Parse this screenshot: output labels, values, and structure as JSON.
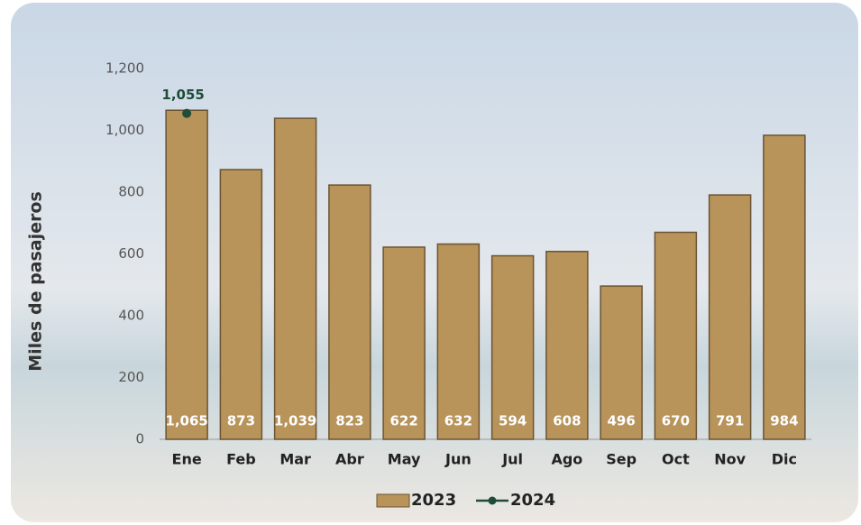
{
  "chart_data": {
    "type": "bar",
    "ylabel": "Miles de pasajeros",
    "categories": [
      "Ene",
      "Feb",
      "Mar",
      "Abr",
      "May",
      "Jun",
      "Jul",
      "Ago",
      "Sep",
      "Oct",
      "Nov",
      "Dic"
    ],
    "series": [
      {
        "name": "2023",
        "type": "bar",
        "color": "#b8935a",
        "values": [
          1065,
          873,
          1039,
          823,
          622,
          632,
          594,
          608,
          496,
          670,
          791,
          984
        ],
        "value_labels": [
          "1,065",
          "873",
          "1,039",
          "823",
          "622",
          "632",
          "594",
          "608",
          "496",
          "670",
          "791",
          "984"
        ]
      },
      {
        "name": "2024",
        "type": "line",
        "color": "#1f4d3a",
        "values": [
          1055,
          null,
          null,
          null,
          null,
          null,
          null,
          null,
          null,
          null,
          null,
          null
        ],
        "value_labels": [
          "1,055",
          null,
          null,
          null,
          null,
          null,
          null,
          null,
          null,
          null,
          null,
          null
        ]
      }
    ],
    "ylim": [
      0,
      1200
    ],
    "yticks": [
      0,
      200,
      400,
      600,
      800,
      {
        "value": 1000,
        "label": "1,000"
      },
      {
        "value": 1200,
        "label": "1,200"
      }
    ],
    "legend": "bottom"
  }
}
